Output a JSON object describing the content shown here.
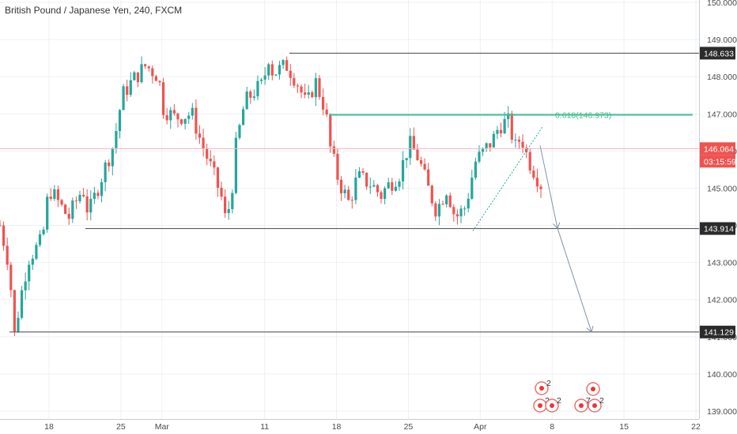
{
  "chart_data": {
    "type": "candlestick",
    "title": "British Pound / Japanese Yen, 240, FXCM",
    "ylim": [
      138.9,
      150.1
    ],
    "x_range_days": [
      12.8,
      53.6
    ],
    "y_ticks": [
      "139.000",
      "140.000",
      "141.000",
      "142.000",
      "143.000",
      "144.000",
      "145.000",
      "146.000",
      "147.000",
      "148.000",
      "149.000",
      "150.000"
    ],
    "x_ticks": [
      {
        "label": "18",
        "day": 18
      },
      {
        "label": "25",
        "day": 25
      },
      {
        "label": "Mar",
        "day": 29
      },
      {
        "label": "11",
        "day": 39
      },
      {
        "label": "18",
        "day": 46
      },
      {
        "label": "25",
        "day": 53
      }
    ],
    "x_ticks_apr": [
      {
        "label": "Apr",
        "day": 60
      },
      {
        "label": "8",
        "day": 67
      },
      {
        "label": "15",
        "day": 74
      },
      {
        "label": "22",
        "day": 81
      }
    ],
    "levels": [
      {
        "label": "148.633",
        "value": 148.633
      },
      {
        "label": "143.914",
        "value": 143.914
      },
      {
        "label": "141.129",
        "value": 141.129
      }
    ],
    "fib": {
      "label": "0.618(146.973)",
      "value": 146.973
    },
    "current_price": {
      "label": "146.064",
      "value": 146.064
    },
    "countdown": "03:15:59",
    "colors": {
      "up": "#26a69a",
      "down": "#ef5350",
      "level": "#555555",
      "fib": "#3fbf8f",
      "current": "#ef5350",
      "arrow": "#7f95a8",
      "countdown_bg": "#ef5350"
    },
    "projection": [
      {
        "day": 62.3,
        "price": 146.15
      },
      {
        "day": 64.1,
        "price": 143.92
      },
      {
        "day": 66.9,
        "price": 141.13
      }
    ],
    "trendline": [
      {
        "day": 58.4,
        "price": 143.85
      },
      {
        "day": 63.1,
        "price": 146.65
      }
    ],
    "candles_path": [
      [
        0,
        144.0
      ],
      [
        1.0,
        142.9
      ],
      [
        1.5,
        141.0
      ],
      [
        2.3,
        142.2
      ],
      [
        3.0,
        143.1
      ],
      [
        4.5,
        143.6
      ],
      [
        5.2,
        145.0
      ],
      [
        7.3,
        144.2
      ],
      [
        8.0,
        144.6
      ],
      [
        8.8,
        145.0
      ],
      [
        9.4,
        144.3
      ],
      [
        10.8,
        145.3
      ],
      [
        12.1,
        146.2
      ],
      [
        13.0,
        147.5
      ],
      [
        14.1,
        147.9
      ],
      [
        15.5,
        148.3
      ],
      [
        16.9,
        148.0
      ],
      [
        17.2,
        147.2
      ],
      [
        18.5,
        146.9
      ],
      [
        20.4,
        147.0
      ],
      [
        21.3,
        146.3
      ],
      [
        22.5,
        145.5
      ],
      [
        23.5,
        144.8
      ],
      [
        24.0,
        144.1
      ],
      [
        24.6,
        144.8
      ],
      [
        25.0,
        146.0
      ],
      [
        26.0,
        147.3
      ],
      [
        27.0,
        147.6
      ],
      [
        28.0,
        147.8
      ],
      [
        28.5,
        148.6
      ],
      [
        29.0,
        148.1
      ],
      [
        30.5,
        148.3
      ],
      [
        31.5,
        147.9
      ],
      [
        32.0,
        147.6
      ],
      [
        32.6,
        147.2
      ],
      [
        33.5,
        147.9
      ],
      [
        34.6,
        147.1
      ],
      [
        35.1,
        146.1
      ],
      [
        36.0,
        145.2
      ],
      [
        37.1,
        144.6
      ],
      [
        38.0,
        145.3
      ],
      [
        39.5,
        145.1
      ],
      [
        40.5,
        144.8
      ],
      [
        41.0,
        145.0
      ],
      [
        42.5,
        145.4
      ],
      [
        43.5,
        146.2
      ],
      [
        44.5,
        145.8
      ],
      [
        45.5,
        145.0
      ],
      [
        46.4,
        144.4
      ],
      [
        47.5,
        145.0
      ],
      [
        48.4,
        144.2
      ],
      [
        49.5,
        144.5
      ],
      [
        50.5,
        145.7
      ],
      [
        52.4,
        146.3
      ],
      [
        53.1,
        146.7
      ],
      [
        54.0,
        146.8
      ],
      [
        54.8,
        146.1
      ],
      [
        55.4,
        146.4
      ],
      [
        56.1,
        145.8
      ],
      [
        57.5,
        145.1
      ]
    ]
  },
  "event_icons": [
    "2",
    "2",
    "2",
    "7",
    "2"
  ]
}
